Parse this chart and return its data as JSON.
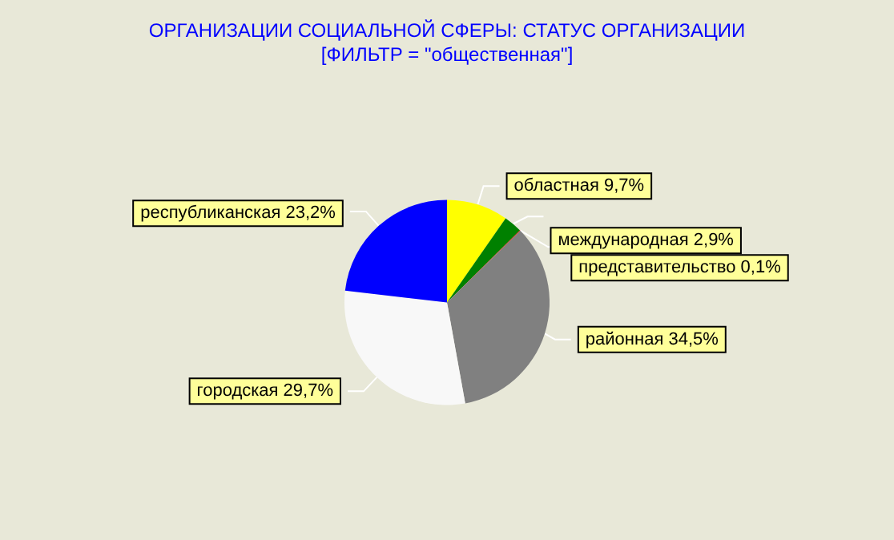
{
  "chart_data": {
    "type": "pie",
    "title": "ОРГАНИЗАЦИИ СОЦИАЛЬНОЙ СФЕРЫ: СТАТУС ОРГАНИЗАЦИИ",
    "subtitle": "[ФИЛЬТР = \"общественная\"]",
    "categories": [
      "областная",
      "международная",
      "представительство",
      "районная",
      "городская",
      "республиканская"
    ],
    "values": [
      9.7,
      2.9,
      0.1,
      34.5,
      29.7,
      23.2
    ],
    "value_labels": [
      "9,7%",
      "2,9%",
      "0,1%",
      "34,5%",
      "29,7%",
      "23,2%"
    ],
    "colors": [
      "#ffff00",
      "#008000",
      "#ff0000",
      "#808080",
      "#f8f8f8",
      "#0000ff"
    ],
    "legend": false
  }
}
